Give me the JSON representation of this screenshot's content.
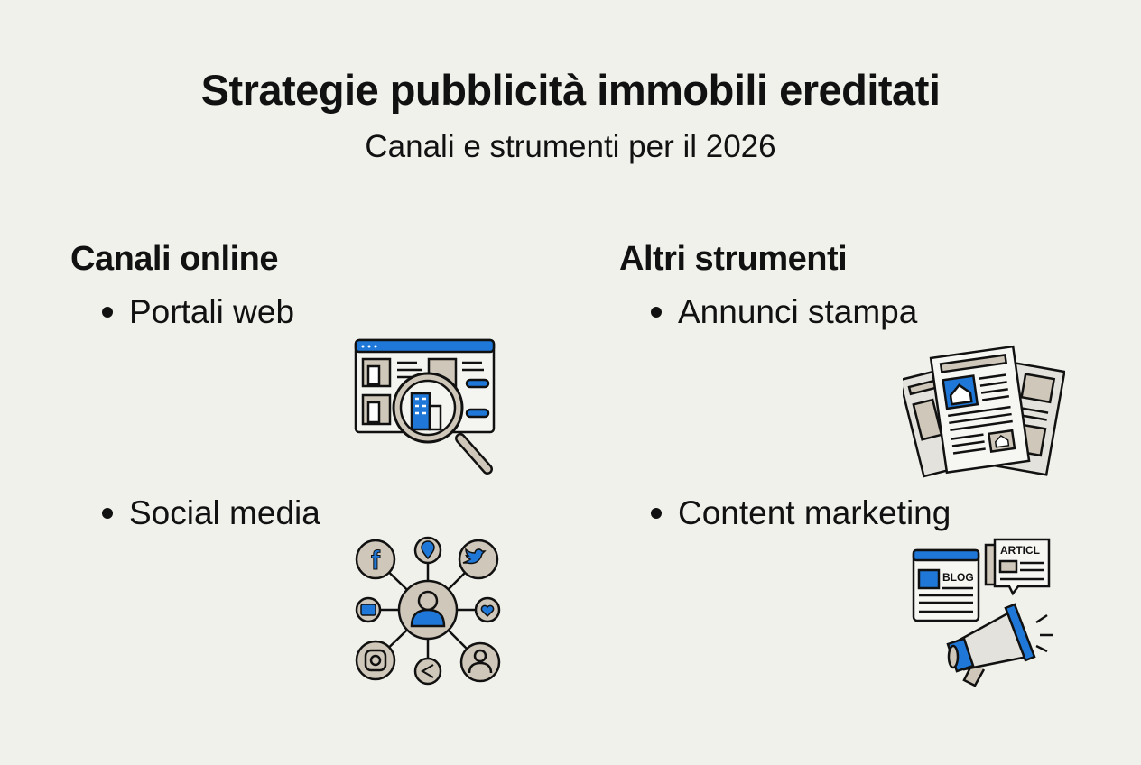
{
  "title": "Strategie pubblicità immobili ereditati",
  "subtitle": "Canali e strumenti per il 2026",
  "colors": {
    "background": "#f1f1ec",
    "accent": "#1f78d8",
    "neutral": "#cfc7b9",
    "ink": "#111111"
  },
  "sections": [
    {
      "heading": "Canali online",
      "items": [
        {
          "label": "Portali web",
          "icon": "web-portal-magnifier-icon"
        },
        {
          "label": "Social media",
          "icon": "social-network-icon"
        }
      ]
    },
    {
      "heading": "Altri strumenti",
      "items": [
        {
          "label": "Annunci stampa",
          "icon": "newspaper-icon"
        },
        {
          "label": "Content marketing",
          "icon": "blog-megaphone-icon",
          "icon_text": [
            "BLOG",
            "ARTICL"
          ]
        }
      ]
    }
  ]
}
